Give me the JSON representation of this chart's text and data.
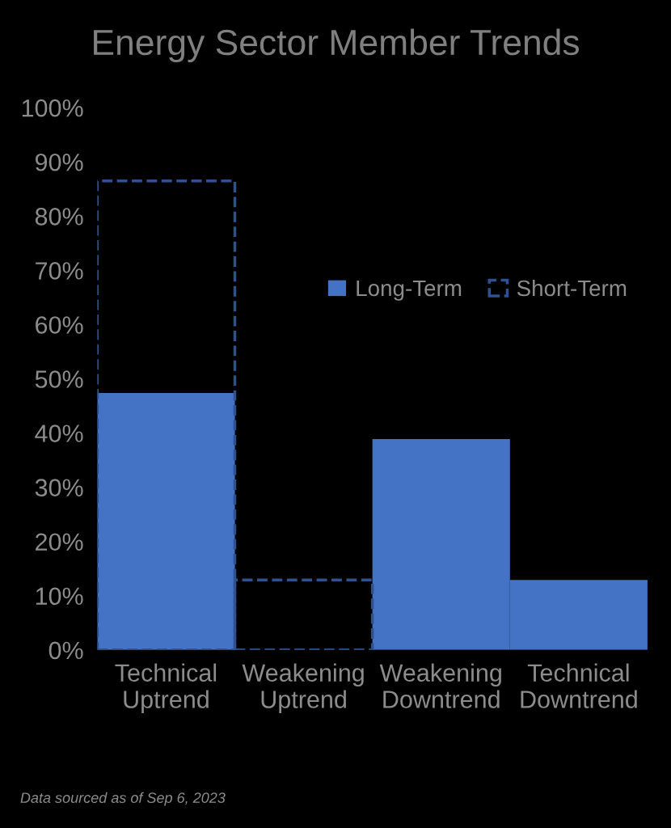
{
  "chart_data": {
    "type": "bar",
    "title": "Energy Sector Member Trends",
    "categories": [
      "Technical\nUptrend",
      "Weakening\nUptrend",
      "Weakening\nDowntrend",
      "Technical\nDowntrend"
    ],
    "series": [
      {
        "name": "Long-Term",
        "color": "#4472c4",
        "line_style": "solid",
        "values": [
          47.4,
          null,
          38.9,
          12.9
        ]
      },
      {
        "name": "Short-Term",
        "color": "#2f528f",
        "line_style": "dashed",
        "values": [
          86.5,
          12.9,
          null,
          null
        ]
      }
    ],
    "ylim": [
      0,
      100
    ],
    "yticks": [
      {
        "value": 0,
        "label": "0%"
      },
      {
        "value": 10,
        "label": "10%"
      },
      {
        "value": 20,
        "label": "20%"
      },
      {
        "value": 30,
        "label": "30%"
      },
      {
        "value": 40,
        "label": "40%"
      },
      {
        "value": 50,
        "label": "50%"
      },
      {
        "value": 60,
        "label": "60%"
      },
      {
        "value": 70,
        "label": "70%"
      },
      {
        "value": 80,
        "label": "80%"
      },
      {
        "value": 90,
        "label": "90%"
      },
      {
        "value": 100,
        "label": "100%"
      }
    ],
    "grid": false,
    "legend": "top right",
    "annotations": [
      "Data sourced as of Sep 6, 2023"
    ]
  }
}
